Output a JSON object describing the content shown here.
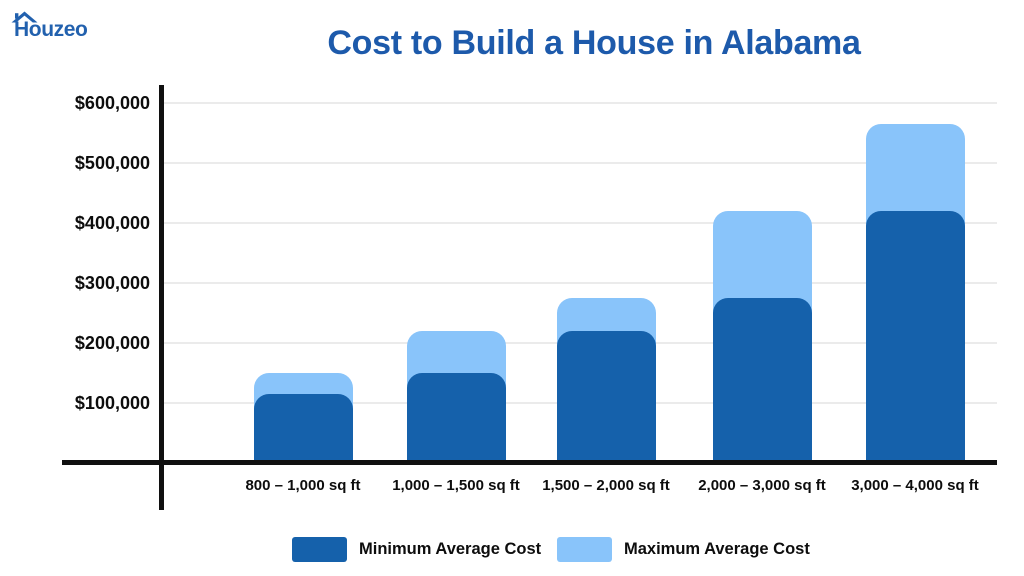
{
  "logo": {
    "text": "Houzeo",
    "color": "#2261ae"
  },
  "chart_data": {
    "type": "bar",
    "title": "Cost to Build a House in Alabama",
    "title_color": "#1d5aab",
    "categories": [
      "800 – 1,000 sq ft",
      "1,000 – 1,500 sq ft",
      "1,500 – 2,000 sq ft",
      "2,000 – 3,000 sq ft",
      "3,000 – 4,000 sq ft"
    ],
    "series": [
      {
        "name": "Minimum Average Cost",
        "color": "#1561ab",
        "values": [
          115000,
          150000,
          220000,
          275000,
          420000
        ]
      },
      {
        "name": "Maximum Average Cost",
        "color": "#89c4fa",
        "values": [
          150000,
          220000,
          275000,
          420000,
          565000
        ]
      }
    ],
    "y_ticks": [
      "$100,000",
      "$200,000",
      "$300,000",
      "$400,000",
      "$500,000",
      "$600,000"
    ],
    "y_tick_values": [
      100000,
      200000,
      300000,
      400000,
      500000,
      600000
    ],
    "ylim": [
      0,
      630000
    ],
    "xlabel": "",
    "ylabel": "",
    "grid": true,
    "grid_color": "#ebebeb",
    "axis_color": "#101010",
    "legend_position": "bottom"
  }
}
